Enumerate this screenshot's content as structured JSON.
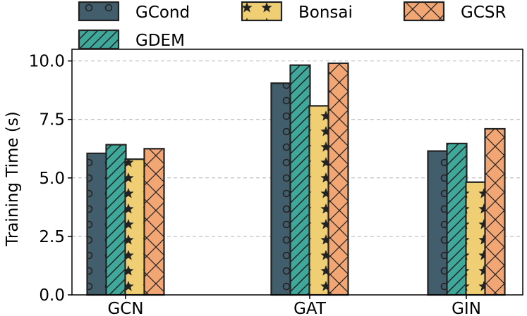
{
  "chart_data": {
    "type": "bar",
    "categories": [
      "GCN",
      "GAT",
      "GIN"
    ],
    "series": [
      {
        "name": "GCond",
        "values": [
          6.05,
          9.05,
          6.15
        ],
        "color": "#425d6b",
        "pattern": "circles"
      },
      {
        "name": "GDEM",
        "values": [
          6.42,
          9.82,
          6.47
        ],
        "color": "#3fa89a",
        "pattern": "diagonal"
      },
      {
        "name": "Bonsai",
        "values": [
          5.8,
          8.08,
          4.82
        ],
        "color": "#f0cf74",
        "pattern": "stars"
      },
      {
        "name": "GCSR",
        "values": [
          6.25,
          9.9,
          7.1
        ],
        "color": "#f2a673",
        "pattern": "crosshatch"
      }
    ],
    "title": "",
    "xlabel": "",
    "ylabel": "Training Time (s)",
    "ylim": [
      0,
      10.5
    ],
    "yticks": [
      "0.0",
      "2.5",
      "5.0",
      "7.5",
      "10.0"
    ],
    "ytick_values": [
      0,
      2.5,
      5.0,
      7.5,
      10.0
    ],
    "grid": "y-dashed",
    "legend_position": "top"
  }
}
